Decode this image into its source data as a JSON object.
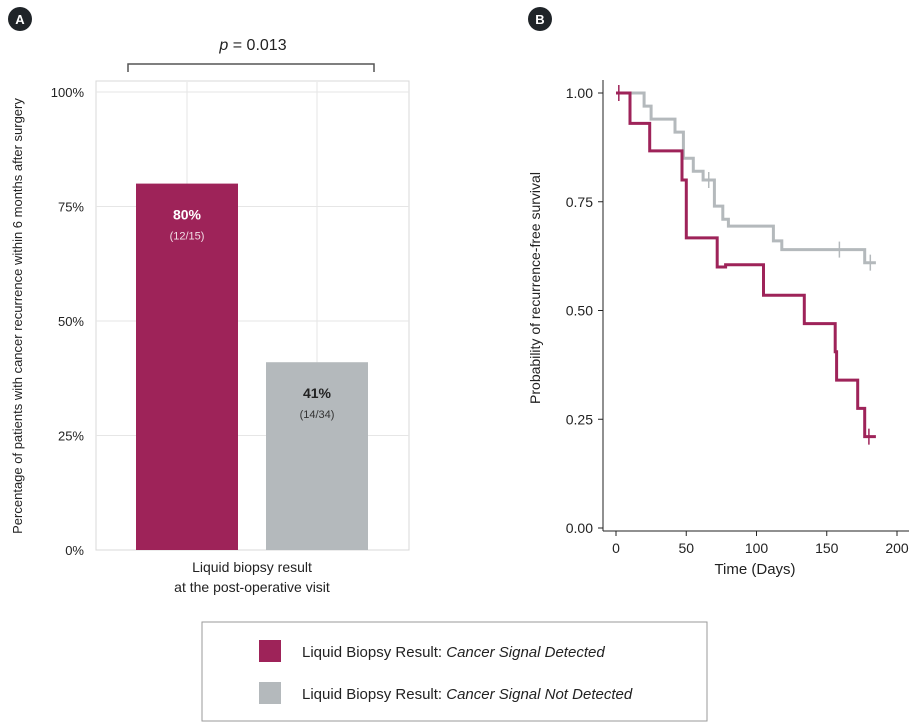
{
  "colors": {
    "detected": "#9e2359",
    "not_detected": "#b4b9bc",
    "panel_badge": "#1f2428",
    "grid": "#e6e6e6",
    "axis": "#222222"
  },
  "panels": {
    "a_label": "A",
    "b_label": "B"
  },
  "legend": {
    "items": [
      {
        "prefix": "Liquid Biopsy Result: ",
        "italic": "Cancer Signal Detected",
        "color": "#9e2359"
      },
      {
        "prefix": "Liquid Biopsy Result: ",
        "italic": "Cancer Signal Not Detected",
        "color": "#b4b9bc"
      }
    ]
  },
  "chart_data": [
    {
      "type": "bar",
      "panel": "A",
      "categories": [
        "Cancer Signal Detected",
        "Cancer Signal Not Detected"
      ],
      "values": [
        80,
        41
      ],
      "value_labels": [
        "80%",
        "41%"
      ],
      "count_labels": [
        "(12/15)",
        "(14/34)"
      ],
      "ylabel": "Percentage of patients with cancer recurrence within 6 months after surgery",
      "xlabel_line1": "Liquid biopsy result",
      "xlabel_line2": "at the post-operative visit",
      "yticks": [
        "0%",
        "25%",
        "50%",
        "75%",
        "100%"
      ],
      "ylim": [
        0,
        100
      ],
      "annotation_p": "p",
      "annotation_value": " = 0.013",
      "grid": true
    },
    {
      "type": "line",
      "panel": "B",
      "subtype": "kaplan-meier step",
      "xlabel": "Time (Days)",
      "ylabel": "Probability of recurrence-free survival",
      "xticks": [
        "0",
        "50",
        "100",
        "150",
        "200"
      ],
      "yticks": [
        "0.00",
        "0.25",
        "0.50",
        "0.75",
        "1.00"
      ],
      "xlim": [
        0,
        200
      ],
      "ylim": [
        0,
        1
      ],
      "series": [
        {
          "color": "#9e2359",
          "points": [
            [
              0,
              1.0
            ],
            [
              10,
              1.0
            ],
            [
              10,
              0.93
            ],
            [
              24,
              0.93
            ],
            [
              24,
              0.867
            ],
            [
              47,
              0.867
            ],
            [
              47,
              0.8
            ],
            [
              50,
              0.8
            ],
            [
              50,
              0.667
            ],
            [
              72,
              0.667
            ],
            [
              72,
              0.6
            ],
            [
              78,
              0.6
            ],
            [
              78,
              0.605
            ],
            [
              105,
              0.605
            ],
            [
              105,
              0.535
            ],
            [
              134,
              0.535
            ],
            [
              134,
              0.47
            ],
            [
              156,
              0.47
            ],
            [
              156,
              0.405
            ],
            [
              157,
              0.405
            ],
            [
              157,
              0.34
            ],
            [
              172,
              0.34
            ],
            [
              172,
              0.275
            ],
            [
              177,
              0.275
            ],
            [
              177,
              0.21
            ],
            [
              185,
              0.21
            ]
          ],
          "censor_x": [
            2,
            180
          ]
        },
        {
          "color": "#b4b9bc",
          "points": [
            [
              0,
              1.0
            ],
            [
              20,
              1.0
            ],
            [
              20,
              0.97
            ],
            [
              25,
              0.97
            ],
            [
              25,
              0.94
            ],
            [
              42,
              0.94
            ],
            [
              42,
              0.91
            ],
            [
              48,
              0.91
            ],
            [
              48,
              0.85
            ],
            [
              55,
              0.85
            ],
            [
              55,
              0.82
            ],
            [
              62,
              0.82
            ],
            [
              62,
              0.8
            ],
            [
              70,
              0.8
            ],
            [
              70,
              0.74
            ],
            [
              76,
              0.74
            ],
            [
              76,
              0.71
            ],
            [
              80,
              0.71
            ],
            [
              80,
              0.694
            ],
            [
              112,
              0.694
            ],
            [
              112,
              0.66
            ],
            [
              118,
              0.66
            ],
            [
              118,
              0.64
            ],
            [
              177,
              0.64
            ],
            [
              177,
              0.61
            ],
            [
              185,
              0.61
            ]
          ],
          "censor_x": [
            66,
            159,
            181
          ]
        }
      ],
      "grid": false
    }
  ]
}
